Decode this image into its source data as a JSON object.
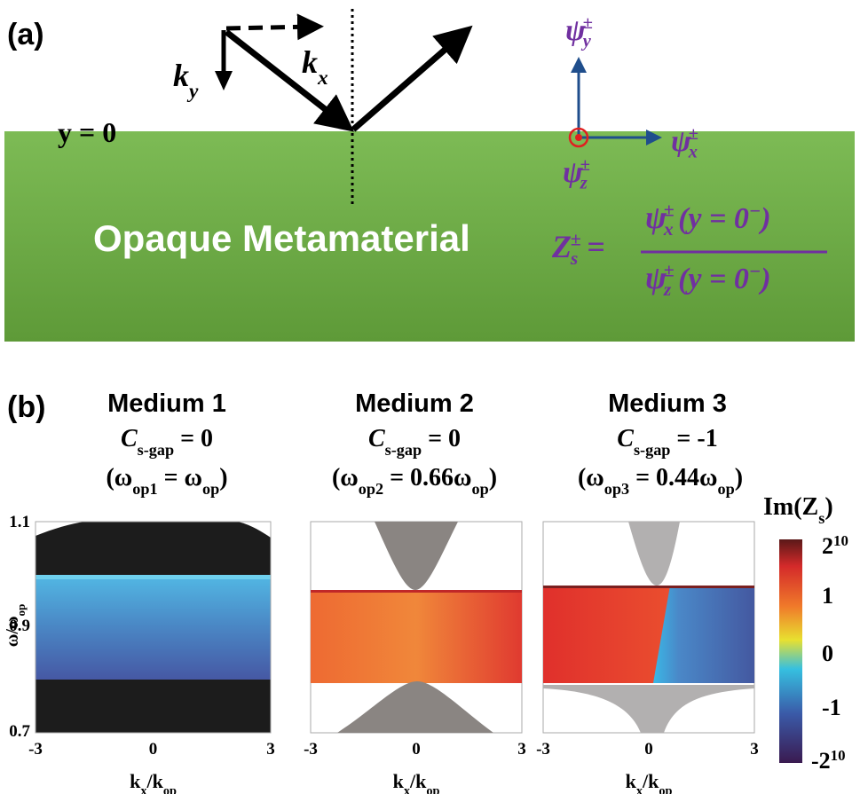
{
  "panel_a": {
    "label": "(a)",
    "ky": {
      "base": "k",
      "sub": "y"
    },
    "kx": {
      "base": "k",
      "sub": "x"
    },
    "interface": "y = 0",
    "material": "Opaque Metamaterial",
    "psi_y": {
      "base": "ψ",
      "sup": "±",
      "sub": "y"
    },
    "psi_x": {
      "base": "ψ",
      "sup": "±",
      "sub": "x"
    },
    "psi_z": {
      "base": "ψ",
      "sup": "±",
      "sub": "z"
    },
    "formula": {
      "lhs": {
        "base": "Z",
        "sup": "±",
        "sub": "s"
      },
      "eq": "=",
      "numerator": {
        "base": "ψ",
        "sup": "±",
        "sub": "x",
        "arg": "(y = 0",
        "arg_sup": "−",
        "close": ")"
      },
      "denominator": {
        "base": "ψ",
        "sup": "±",
        "sub": "z",
        "arg": "(y = 0",
        "arg_sup": "−",
        "close": ")"
      }
    }
  },
  "panel_b": {
    "label": "(b)",
    "media": [
      {
        "name": "Medium 1",
        "gap": {
          "base": "C",
          "sub": "s-gap",
          "rest": " = 0"
        },
        "freq": {
          "open": "(ω",
          "sub": "op1",
          "mid": " = ω",
          "sub2": "op",
          "close": ")"
        }
      },
      {
        "name": "Medium 2",
        "gap": {
          "base": "C",
          "sub": "s-gap",
          "rest": " = 0"
        },
        "freq": {
          "open": "(ω",
          "sub": "op2",
          "mid": " = 0.66ω",
          "sub2": "op",
          "close": ")"
        }
      },
      {
        "name": "Medium 3",
        "gap": {
          "base": "C",
          "sub": "s-gap",
          "rest": " = -1"
        },
        "freq": {
          "open": "(ω",
          "sub": "op3",
          "mid": " = 0.44ω",
          "sub2": "op",
          "close": ")"
        }
      }
    ],
    "y_axis": {
      "label": {
        "base": "ω/ω",
        "sub": "op"
      },
      "ticks": [
        "1.1",
        "0.9",
        "0.7"
      ]
    },
    "x_axis": {
      "label": {
        "base": "k",
        "sub": "x",
        "mid": "/k",
        "sub2": "op"
      },
      "ticks": [
        "-3",
        "0",
        "3"
      ]
    },
    "colorbar": {
      "title": {
        "base": "Im(Z",
        "sub": "s",
        "close": ")"
      },
      "ticks": [
        {
          "base": "2",
          "sup": "10"
        },
        "1",
        "0",
        "-1",
        {
          "base": "-2",
          "sup": "10"
        }
      ]
    }
  }
}
